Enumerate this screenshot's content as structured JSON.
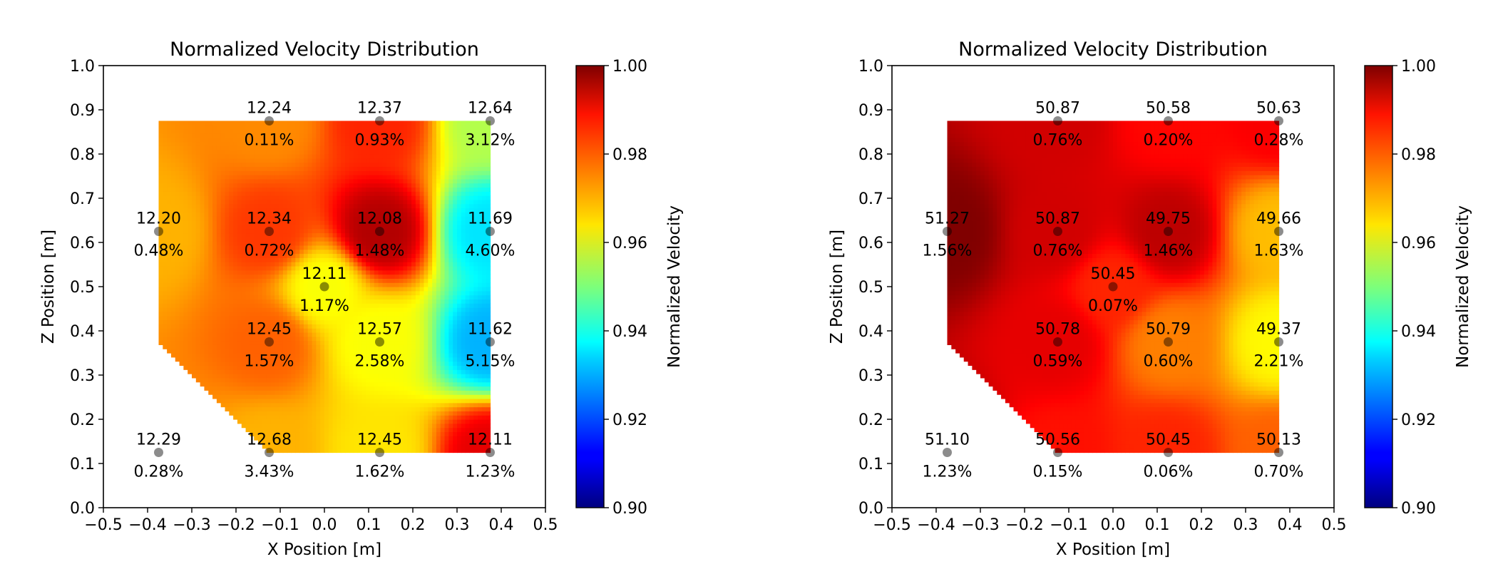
{
  "chart_data": [
    {
      "type": "heatmap",
      "title": "Normalized Velocity Distribution",
      "xlabel": "X Position [m]",
      "ylabel": "Z Position [m]",
      "xlim": [
        -0.5,
        0.5
      ],
      "ylim": [
        0.0,
        1.0
      ],
      "xticks": [
        -0.5,
        -0.4,
        -0.3,
        -0.2,
        -0.1,
        0.0,
        0.1,
        0.2,
        0.3,
        0.4,
        0.5
      ],
      "xtick_labels": [
        "−0.5",
        "−0.4",
        "−0.3",
        "−0.2",
        "−0.1",
        "0.0",
        "0.1",
        "0.2",
        "0.3",
        "0.4",
        "0.5"
      ],
      "yticks": [
        0.0,
        0.1,
        0.2,
        0.3,
        0.4,
        0.5,
        0.6,
        0.7,
        0.8,
        0.9,
        1.0
      ],
      "ytick_labels": [
        "0.0",
        "0.1",
        "0.2",
        "0.3",
        "0.4",
        "0.5",
        "0.6",
        "0.7",
        "0.8",
        "0.9",
        "1.0"
      ],
      "grid": false,
      "colormap": "jet",
      "colorbar": {
        "label": "Normalized Velocity",
        "range": [
          0.9,
          1.0
        ],
        "ticks": [
          "0.90",
          "0.92",
          "0.94",
          "0.96",
          "0.98",
          "1.00"
        ]
      },
      "points": [
        {
          "x": -0.125,
          "z": 0.875,
          "value": "12.24",
          "pct": "0.11%",
          "norm": 0.974
        },
        {
          "x": 0.125,
          "z": 0.875,
          "value": "12.37",
          "pct": "0.93%",
          "norm": 0.984
        },
        {
          "x": 0.375,
          "z": 0.875,
          "value": "12.64",
          "pct": "3.12%",
          "norm": 0.955
        },
        {
          "x": -0.375,
          "z": 0.625,
          "value": "12.20",
          "pct": "0.48%",
          "norm": 0.97
        },
        {
          "x": -0.125,
          "z": 0.625,
          "value": "12.34",
          "pct": "0.72%",
          "norm": 0.982
        },
        {
          "x": 0.125,
          "z": 0.625,
          "value": "12.08",
          "pct": "1.48%",
          "norm": 0.995
        },
        {
          "x": 0.375,
          "z": 0.625,
          "value": "11.69",
          "pct": "4.60%",
          "norm": 0.935
        },
        {
          "x": 0.0,
          "z": 0.5,
          "value": "12.11",
          "pct": "1.17%",
          "norm": 0.962
        },
        {
          "x": -0.125,
          "z": 0.375,
          "value": "12.45",
          "pct": "1.57%",
          "norm": 0.978
        },
        {
          "x": 0.125,
          "z": 0.375,
          "value": "12.57",
          "pct": "2.58%",
          "norm": 0.962
        },
        {
          "x": 0.375,
          "z": 0.375,
          "value": "11.62",
          "pct": "5.15%",
          "norm": 0.93
        },
        {
          "x": -0.375,
          "z": 0.125,
          "value": "12.29",
          "pct": "0.28%",
          "norm": 0.975
        },
        {
          "x": -0.125,
          "z": 0.125,
          "value": "12.68",
          "pct": "3.43%",
          "norm": 0.97
        },
        {
          "x": 0.125,
          "z": 0.125,
          "value": "12.45",
          "pct": "1.62%",
          "norm": 0.965
        },
        {
          "x": 0.375,
          "z": 0.125,
          "value": "12.11",
          "pct": "1.23%",
          "norm": 0.99
        }
      ]
    },
    {
      "type": "heatmap",
      "title": "Normalized Velocity Distribution",
      "xlabel": "X Position [m]",
      "ylabel": "Z Position [m]",
      "xlim": [
        -0.5,
        0.5
      ],
      "ylim": [
        0.0,
        1.0
      ],
      "xticks": [
        -0.5,
        -0.4,
        -0.3,
        -0.2,
        -0.1,
        0.0,
        0.1,
        0.2,
        0.3,
        0.4,
        0.5
      ],
      "xtick_labels": [
        "−0.5",
        "−0.4",
        "−0.3",
        "−0.2",
        "−0.1",
        "0.0",
        "0.1",
        "0.2",
        "0.3",
        "0.4",
        "0.5"
      ],
      "yticks": [
        0.0,
        0.1,
        0.2,
        0.3,
        0.4,
        0.5,
        0.6,
        0.7,
        0.8,
        0.9,
        1.0
      ],
      "ytick_labels": [
        "0.0",
        "0.1",
        "0.2",
        "0.3",
        "0.4",
        "0.5",
        "0.6",
        "0.7",
        "0.8",
        "0.9",
        "1.0"
      ],
      "grid": false,
      "colormap": "jet",
      "colorbar": {
        "label": "Normalized Velocity",
        "range": [
          0.9,
          1.0
        ],
        "ticks": [
          "0.90",
          "0.92",
          "0.94",
          "0.96",
          "0.98",
          "1.00"
        ]
      },
      "points": [
        {
          "x": -0.125,
          "z": 0.875,
          "value": "50.87",
          "pct": "0.76%",
          "norm": 0.992
        },
        {
          "x": 0.125,
          "z": 0.875,
          "value": "50.58",
          "pct": "0.20%",
          "norm": 0.987
        },
        {
          "x": 0.375,
          "z": 0.875,
          "value": "50.63",
          "pct": "0.28%",
          "norm": 0.988
        },
        {
          "x": -0.375,
          "z": 0.625,
          "value": "51.27",
          "pct": "1.56%",
          "norm": 1.0
        },
        {
          "x": -0.125,
          "z": 0.625,
          "value": "50.87",
          "pct": "0.76%",
          "norm": 0.992
        },
        {
          "x": 0.125,
          "z": 0.625,
          "value": "49.75",
          "pct": "1.46%",
          "norm": 0.994
        },
        {
          "x": 0.375,
          "z": 0.625,
          "value": "49.66",
          "pct": "1.63%",
          "norm": 0.969
        },
        {
          "x": 0.0,
          "z": 0.5,
          "value": "50.45",
          "pct": "0.07%",
          "norm": 0.984
        },
        {
          "x": -0.125,
          "z": 0.375,
          "value": "50.78",
          "pct": "0.59%",
          "norm": 0.99
        },
        {
          "x": 0.125,
          "z": 0.375,
          "value": "50.79",
          "pct": "0.60%",
          "norm": 0.975
        },
        {
          "x": 0.375,
          "z": 0.375,
          "value": "49.37",
          "pct": "2.21%",
          "norm": 0.963
        },
        {
          "x": -0.375,
          "z": 0.125,
          "value": "51.10",
          "pct": "1.23%",
          "norm": 0.997
        },
        {
          "x": -0.125,
          "z": 0.125,
          "value": "50.56",
          "pct": "0.15%",
          "norm": 0.986
        },
        {
          "x": 0.125,
          "z": 0.125,
          "value": "50.45",
          "pct": "0.06%",
          "norm": 0.984
        },
        {
          "x": 0.375,
          "z": 0.125,
          "value": "50.13",
          "pct": "0.70%",
          "norm": 0.978
        }
      ]
    }
  ]
}
